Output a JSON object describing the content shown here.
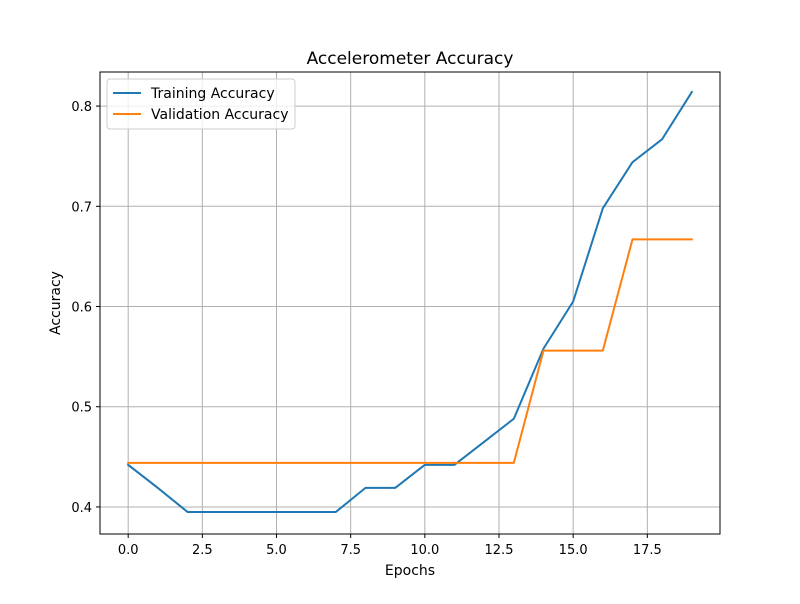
{
  "chart_data": {
    "type": "line",
    "title": "Accelerometer Accuracy",
    "xlabel": "Epochs",
    "ylabel": "Accuracy",
    "xlim": [
      -0.95,
      19.95
    ],
    "ylim": [
      0.373,
      0.834
    ],
    "x_ticks": [
      0.0,
      2.5,
      5.0,
      7.5,
      10.0,
      12.5,
      15.0,
      17.5
    ],
    "x_tick_labels": [
      "0.0",
      "2.5",
      "5.0",
      "7.5",
      "10.0",
      "12.5",
      "15.0",
      "17.5"
    ],
    "y_ticks": [
      0.4,
      0.5,
      0.6,
      0.7,
      0.8
    ],
    "y_tick_labels": [
      "0.4",
      "0.5",
      "0.6",
      "0.7",
      "0.8"
    ],
    "grid": true,
    "legend_position": "top-left",
    "x": [
      0,
      1,
      2,
      3,
      4,
      5,
      6,
      7,
      8,
      9,
      10,
      11,
      12,
      13,
      14,
      15,
      16,
      17,
      18,
      19
    ],
    "series": [
      {
        "name": "Training Accuracy",
        "color": "#1f77b4",
        "values": [
          0.442,
          0.419,
          0.395,
          0.395,
          0.395,
          0.395,
          0.395,
          0.395,
          0.419,
          0.419,
          0.442,
          0.442,
          0.465,
          0.488,
          0.558,
          0.605,
          0.698,
          0.744,
          0.767,
          0.814
        ]
      },
      {
        "name": "Validation Accuracy",
        "color": "#ff7f0e",
        "values": [
          0.444,
          0.444,
          0.444,
          0.444,
          0.444,
          0.444,
          0.444,
          0.444,
          0.444,
          0.444,
          0.444,
          0.444,
          0.444,
          0.444,
          0.556,
          0.556,
          0.556,
          0.667,
          0.667,
          0.667
        ]
      }
    ]
  }
}
